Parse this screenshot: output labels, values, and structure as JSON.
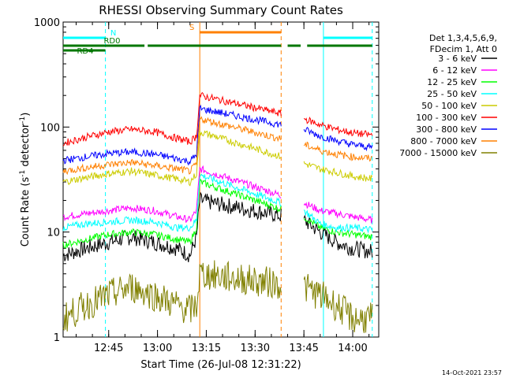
{
  "chart_data": {
    "type": "line",
    "title": "RHESSI Observing Summary Count Rates",
    "xlabel": "Start Time (26-Jul-08 12:31:22)",
    "ylabel": "Count Rate (s",
    "ylabel_sup": "-1",
    "ylabel_rest": " detector",
    "ylabel_close": ")",
    "y_scale": "log",
    "ylim": [
      1,
      1000
    ],
    "xlim": [
      "12:31",
      "14:08"
    ],
    "x_ticks": [
      "12:45",
      "13:00",
      "13:15",
      "13:30",
      "13:45",
      "14:00"
    ],
    "y_ticks": [
      "1",
      "10",
      "100",
      "1000"
    ],
    "legend_header": [
      "Det 1,3,4,5,6,9,",
      "FDecim 1, Att 0"
    ],
    "legend_position": "right",
    "data_gap": [
      "13:38",
      "13:45"
    ],
    "series": [
      {
        "name": "3 - 6 keV",
        "color": "#000000",
        "times": [
          "12:31",
          "12:38",
          "12:45",
          "12:52",
          "12:59",
          "13:06",
          "13:10",
          "13:12",
          "13:13",
          "13:45",
          "13:50",
          "13:55",
          "14:00",
          "14:06"
        ],
        "values": [
          6,
          7,
          8,
          9,
          8,
          7,
          6,
          9,
          20,
          13,
          10,
          8,
          7,
          6.5
        ]
      },
      {
        "name": "6 - 12 keV",
        "color": "#ff00ff",
        "times": [
          "12:31",
          "12:38",
          "12:45",
          "12:52",
          "12:59",
          "13:06",
          "13:10",
          "13:12",
          "13:13",
          "13:45",
          "13:50",
          "13:55",
          "14:00",
          "14:06"
        ],
        "values": [
          14,
          15,
          16,
          17,
          16,
          14,
          13,
          16,
          40,
          19,
          16,
          15,
          14,
          13
        ]
      },
      {
        "name": "12 - 25 keV",
        "color": "#00ff00",
        "times": [
          "12:31",
          "12:38",
          "12:45",
          "12:52",
          "12:59",
          "13:06",
          "13:10",
          "13:12",
          "13:13",
          "13:45",
          "13:50",
          "13:55",
          "14:00",
          "14:06"
        ],
        "values": [
          7.5,
          8.5,
          9.5,
          10,
          9.5,
          8.5,
          8,
          11,
          30,
          14,
          11,
          10,
          9.5,
          9
        ]
      },
      {
        "name": "25 - 50 keV",
        "color": "#00ffff",
        "times": [
          "12:31",
          "12:38",
          "12:45",
          "12:52",
          "12:59",
          "13:06",
          "13:10",
          "13:12",
          "13:13",
          "13:45",
          "13:50",
          "13:55",
          "14:00",
          "14:06"
        ],
        "values": [
          11,
          12,
          12.5,
          13,
          12.5,
          11,
          11,
          13,
          35,
          16,
          12,
          11,
          11,
          10.5
        ]
      },
      {
        "name": "50 - 100 keV",
        "color": "#cccc00",
        "times": [
          "12:31",
          "12:38",
          "12:45",
          "12:52",
          "12:59",
          "13:06",
          "13:10",
          "13:12",
          "13:13",
          "13:45",
          "13:50",
          "13:55",
          "14:00",
          "14:06"
        ],
        "values": [
          30,
          33,
          36,
          38,
          35,
          32,
          30,
          36,
          90,
          45,
          40,
          37,
          34,
          32
        ]
      },
      {
        "name": "100 - 300 keV",
        "color": "#ff0000",
        "times": [
          "12:31",
          "12:38",
          "12:45",
          "12:52",
          "12:59",
          "13:06",
          "13:10",
          "13:12",
          "13:13",
          "13:45",
          "13:50",
          "13:55",
          "14:00",
          "14:06"
        ],
        "values": [
          70,
          80,
          90,
          95,
          90,
          78,
          72,
          82,
          200,
          120,
          105,
          95,
          88,
          84
        ]
      },
      {
        "name": "300 - 800 keV",
        "color": "#0000ff",
        "times": [
          "12:31",
          "12:38",
          "12:45",
          "12:52",
          "12:59",
          "13:06",
          "13:10",
          "13:12",
          "13:13",
          "13:45",
          "13:50",
          "13:55",
          "14:00",
          "14:06"
        ],
        "values": [
          48,
          52,
          56,
          58,
          55,
          50,
          47,
          55,
          150,
          95,
          82,
          74,
          68,
          64
        ]
      },
      {
        "name": "800 - 7000 keV",
        "color": "#ff8000",
        "times": [
          "12:31",
          "12:38",
          "12:45",
          "12:52",
          "12:59",
          "13:06",
          "13:10",
          "13:12",
          "13:13",
          "13:45",
          "13:50",
          "13:55",
          "14:00",
          "14:06"
        ],
        "values": [
          38,
          41,
          44,
          46,
          43,
          40,
          38,
          44,
          120,
          68,
          60,
          55,
          52,
          50
        ]
      },
      {
        "name": "7000 - 15000 keV",
        "color": "#808000",
        "times": [
          "12:31",
          "12:38",
          "12:45",
          "12:52",
          "12:59",
          "13:06",
          "13:10",
          "13:12",
          "13:13",
          "13:45",
          "13:50",
          "13:55",
          "14:00",
          "14:06"
        ],
        "values": [
          1.5,
          2,
          2.5,
          3,
          2.5,
          2,
          1.8,
          2,
          4,
          3,
          2.5,
          2,
          1.5,
          1.5
        ]
      }
    ],
    "annotations": [
      {
        "label": "N",
        "color": "#00ffff",
        "times": [
          [
            "12:31",
            "12:44"
          ],
          [
            "13:51",
            "14:06"
          ]
        ]
      },
      {
        "label": "S",
        "color": "#ff8000",
        "times": [
          [
            "13:13",
            "13:38"
          ]
        ]
      },
      {
        "label": "RD0",
        "color": "#007700",
        "times": [
          [
            "12:31",
            "12:56"
          ],
          [
            "12:57",
            "13:38"
          ],
          [
            "13:40",
            "13:44"
          ],
          [
            "13:46",
            "14:06"
          ]
        ]
      },
      {
        "label": "RD4",
        "color": "#007700",
        "times": [
          [
            "12:31",
            "12:44"
          ]
        ]
      }
    ]
  },
  "footer": {
    "date": "14-Oct-2021 23:57"
  }
}
